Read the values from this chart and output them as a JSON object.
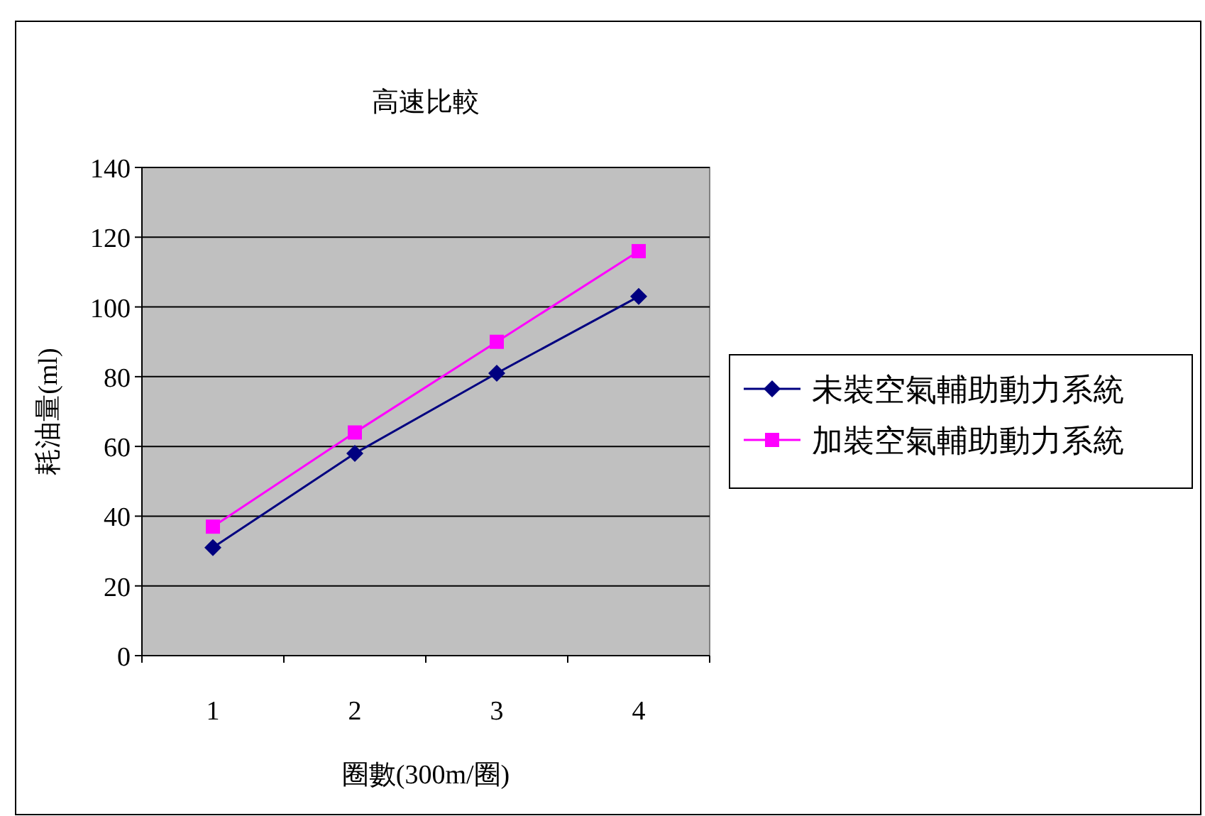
{
  "chart_data": {
    "type": "line",
    "title": "高速比較",
    "xlabel": "圈數(300m/圈)",
    "ylabel": "耗油量(ml)",
    "categories": [
      "1",
      "2",
      "3",
      "4"
    ],
    "series": [
      {
        "name": "未裝空氣輔助動力系統",
        "color": "#000080",
        "marker": "diamond",
        "values": [
          31,
          58,
          81,
          103
        ]
      },
      {
        "name": "加裝空氣輔助動力系統",
        "color": "#ff00ff",
        "marker": "square",
        "values": [
          37,
          64,
          90,
          116
        ]
      }
    ],
    "ylim": [
      0,
      140
    ],
    "yticks": [
      0,
      20,
      40,
      60,
      80,
      100,
      120,
      140
    ],
    "grid": "y",
    "legend": "right",
    "line_style": "solid"
  }
}
